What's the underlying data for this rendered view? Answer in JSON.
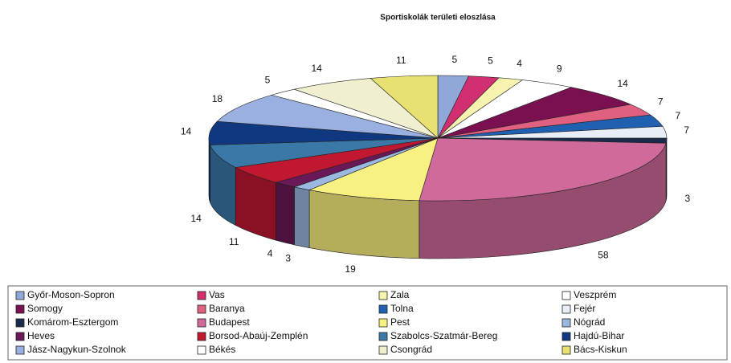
{
  "chart_data": {
    "type": "pie",
    "title": "Sportiskolák területi eloszlása",
    "categories": [
      "Győr-Moson-Sopron",
      "Vas",
      "Zala",
      "Veszprém",
      "Somogy",
      "Baranya",
      "Tolna",
      "Fejér",
      "Komárom-Esztergom",
      "Budapest",
      "Pest",
      "Nógrád",
      "Heves",
      "Borsod-Abaúj-Zemplén",
      "Szabolcs-Szatmár-Bereg",
      "Hajdú-Bihar",
      "Jász-Nagykun-Szolnok",
      "Békés",
      "Csongrád",
      "Bács-Kiskun"
    ],
    "values": [
      5,
      5,
      4,
      9,
      14,
      7,
      7,
      7,
      3,
      58,
      19,
      3,
      4,
      11,
      14,
      14,
      18,
      5,
      14,
      11
    ],
    "colors": [
      "#8fa8d8",
      "#d0306f",
      "#f8f4b0",
      "#ffffff",
      "#7a1050",
      "#e06080",
      "#2060b0",
      "#e8eef8",
      "#1a2a4a",
      "#d06a9a",
      "#f8f080",
      "#9ab8e0",
      "#6a1858",
      "#c01830",
      "#3a78a8",
      "#103880",
      "#9ab0e0",
      "#ffffff",
      "#f0f0d0",
      "#e8e070"
    ]
  }
}
